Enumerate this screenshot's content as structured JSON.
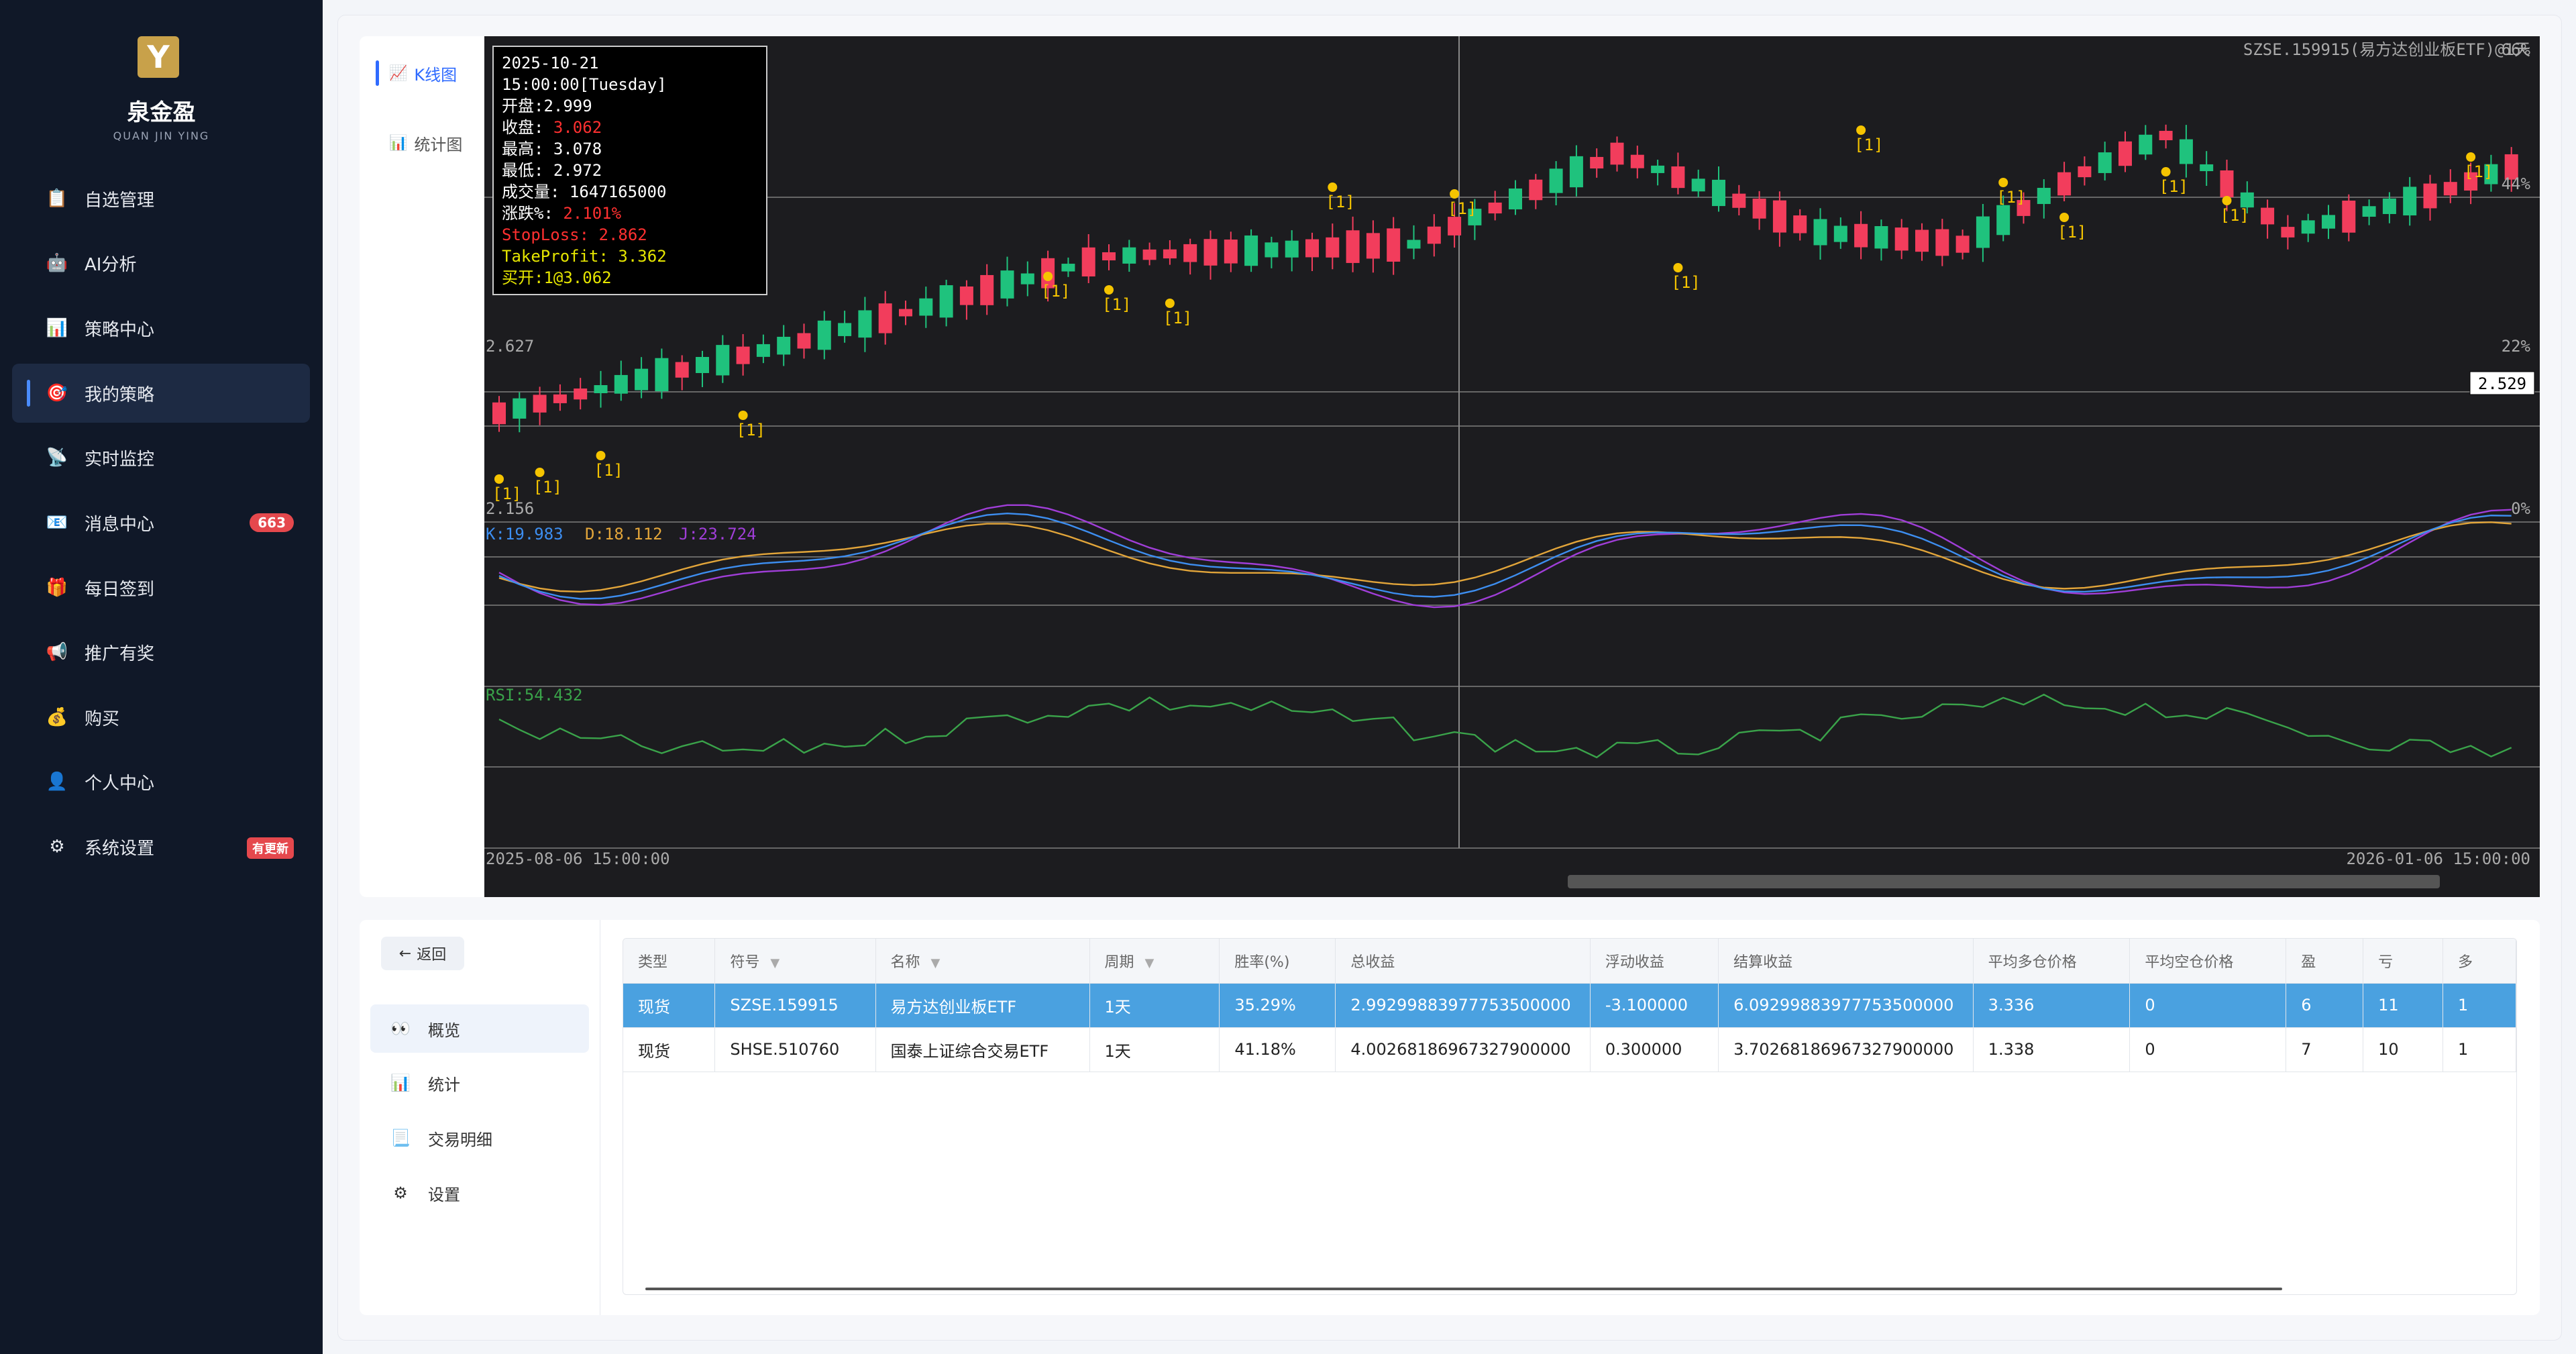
{
  "app": {
    "brand": "泉金盈",
    "brand_sub": "QUAN JIN YING",
    "logo_letter": "Y"
  },
  "sidebar": {
    "items": [
      {
        "label": "自选管理",
        "icon": "📋",
        "name": "clipboard-icon"
      },
      {
        "label": "AI分析",
        "icon": "🤖",
        "name": "robot-icon"
      },
      {
        "label": "策略中心",
        "icon": "📊",
        "name": "bar-chart-icon"
      },
      {
        "label": "我的策略",
        "icon": "🎯",
        "name": "target-icon"
      },
      {
        "label": "实时监控",
        "icon": "📡",
        "name": "satellite-icon"
      },
      {
        "label": "消息中心",
        "icon": "📧",
        "name": "mail-icon"
      },
      {
        "label": "每日签到",
        "icon": "🎁",
        "name": "gift-icon"
      },
      {
        "label": "推广有奖",
        "icon": "📢",
        "name": "megaphone-icon"
      },
      {
        "label": "购买",
        "icon": "💰",
        "name": "money-bag-icon"
      },
      {
        "label": "个人中心",
        "icon": "👤",
        "name": "user-icon"
      },
      {
        "label": "系统设置",
        "icon": "⚙",
        "name": "gear-icon"
      }
    ],
    "message_badge": "663",
    "update_badge": "有更新"
  },
  "chart_tabs": {
    "kline": "K线图",
    "stats": "统计图"
  },
  "chart": {
    "symbol_label": "SZSE.159915(易方达创业板ETF)@1天",
    "start_time": "2025-08-06 15:00:00",
    "end_time": "2026-01-06 15:00:00",
    "price_label_high": "2.627",
    "price_label_low": "2.156",
    "price_label_cursor": "2.529",
    "pct_66": "66%",
    "pct_44": "44%",
    "pct_22": "22%",
    "pct_0": "0%",
    "kdj_k": "K:19.983",
    "kdj_d": "D:18.112",
    "kdj_j": "J:23.724",
    "rsi": "RSI:54.432",
    "marker": "[1]",
    "colors": {
      "up": "#f23d5c",
      "down": "#1fc27d",
      "bg": "#1c1c1f",
      "k": "#3d8ef0",
      "d": "#e2a53a",
      "j": "#a03ed8",
      "rsi": "#3aa34a"
    }
  },
  "tooltip": {
    "date": "2025-10-21 15:00:00[Tuesday]",
    "open": "开盘:2.999",
    "close_label": "收盘:",
    "close_val": "3.062",
    "high": "最高: 3.078",
    "low": "最低: 2.972",
    "volume": "成交量: 1647165000",
    "change_label": "涨跌%:",
    "change_val": "2.101%",
    "stoploss": "StopLoss: 2.862",
    "takeprofit": "TakeProfit: 3.362",
    "buy": "买开:1@3.062"
  },
  "bottom": {
    "back": "返回",
    "nav": [
      {
        "label": "概览",
        "icon": "👀",
        "name": "eyes-icon"
      },
      {
        "label": "统计",
        "icon": "📊",
        "name": "bar-chart-icon"
      },
      {
        "label": "交易明细",
        "icon": "📃",
        "name": "document-icon"
      },
      {
        "label": "设置",
        "icon": "⚙",
        "name": "gear-icon"
      }
    ]
  },
  "table": {
    "columns": [
      "类型",
      "符号",
      "名称",
      "周期",
      "胜率(%)",
      "总收益",
      "浮动收益",
      "结算收益",
      "平均多仓价格",
      "平均空仓价格",
      "盈",
      "亏",
      "多"
    ],
    "rows": [
      [
        "现货",
        "SZSE.159915",
        "易方达创业板ETF",
        "1天",
        "35.29%",
        "2.99299883977753500000",
        "-3.100000",
        "6.09299883977753500000",
        "3.336",
        "0",
        "6",
        "11",
        "1"
      ],
      [
        "现货",
        "SHSE.510760",
        "国泰上证综合交易ETF",
        "1天",
        "41.18%",
        "4.00268186967327900000",
        "0.300000",
        "3.70268186967327900000",
        "1.338",
        "0",
        "7",
        "10",
        "1"
      ]
    ]
  }
}
